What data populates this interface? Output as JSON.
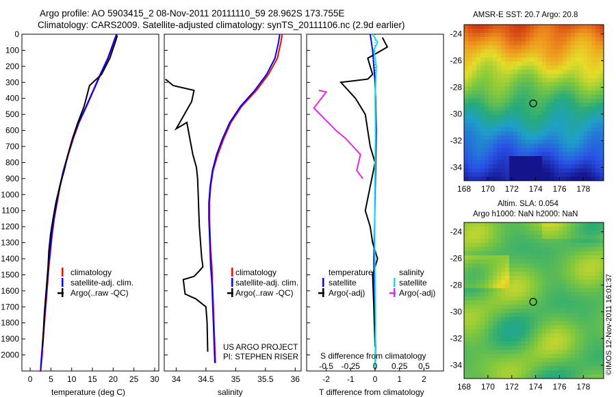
{
  "header": {
    "line1": "Argo profile: AO 5903415_2 08-Nov-2011 20111110_59 28.962S 173.755E",
    "line2": "Climatology: CARS2009. Satellite-adjusted climatology: synTS_20111106.nc (2.9d earlier)"
  },
  "colors": {
    "climatology": "#ff0000",
    "satellite": "#0000ff",
    "argo": "#000000",
    "salinity_satellite": "#00e5ee",
    "salinity_argo": "#ee22ee"
  },
  "panels": {
    "temperature": {
      "xlabel": "temperature (deg C)",
      "legend": [
        "climatology",
        "satellite-adj. clim.",
        "Argo(..raw -QC)"
      ]
    },
    "salinity": {
      "xlabel": "salinity",
      "legend": [
        "climatology",
        "satellite-adj. clim.",
        "Argo(..raw -QC)"
      ],
      "project_line1": "US ARGO PROJECT",
      "project_line2": "PI: STEPHEN RISER"
    },
    "difference": {
      "xlabel": "T difference from climatology",
      "top_label": "S difference from climatology",
      "legend_temperature_title": "temperature",
      "legend_salinity_title": "salinity",
      "legend_sat": "satellite",
      "legend_argo": "Argo(-adj)"
    }
  },
  "maps": {
    "sst_title": "AMSR-E SST: 20.7 Argo: 20.8",
    "sla_title1": "Altim. SLA: 0.054",
    "sla_title2": "Argo h1000: NaN h2000: NaN",
    "credit": "©IMOS 12-Nov-2011 16:01:37",
    "lon_ticks": [
      "168",
      "170",
      "172",
      "174",
      "176",
      "178"
    ],
    "lat_ticks": [
      "-24",
      "-26",
      "-28",
      "-30",
      "-32",
      "-34"
    ],
    "float_position": {
      "lon": 173.755,
      "lat": -28.962
    }
  },
  "chart_data": [
    {
      "type": "line",
      "panel": "temperature",
      "xlabel": "temperature (deg C)",
      "ylabel": "",
      "xlim": [
        -2,
        31
      ],
      "ylim": [
        2100,
        0
      ],
      "xticks": [
        0,
        5,
        10,
        15,
        20,
        25,
        30
      ],
      "yticks": [
        0,
        100,
        200,
        300,
        400,
        500,
        600,
        700,
        800,
        900,
        1000,
        1100,
        1200,
        1300,
        1400,
        1500,
        1600,
        1700,
        1800,
        1900,
        2000
      ],
      "series": [
        {
          "name": "climatology",
          "color": "#ff0000",
          "x": [
            21,
            20.2,
            18.8,
            17,
            15.3,
            13.6,
            11.8,
            10.4,
            9.2,
            8.1,
            7.2,
            6.5,
            5.8,
            5.3,
            4.9,
            4.5,
            4.2,
            3.9,
            3.6,
            3.3,
            3.0,
            2.9,
            2.7,
            2.6,
            2.5,
            2.4,
            2.3
          ],
          "y": [
            0,
            50,
            150,
            250,
            350,
            450,
            550,
            650,
            750,
            850,
            950,
            1050,
            1150,
            1250,
            1350,
            1450,
            1550,
            1650,
            1750,
            1850,
            1950,
            2000,
            2050,
            2075,
            2100,
            2100,
            2100
          ]
        },
        {
          "name": "satellite-adj. clim.",
          "color": "#0000ff",
          "x": [
            20.8,
            20.1,
            18.7,
            16.9,
            15.2,
            13.5,
            11.7,
            10.3,
            9.1,
            8.0,
            7.1,
            6.4,
            5.7,
            5.2,
            4.8,
            4.4,
            4.1,
            3.8,
            3.5,
            3.2,
            2.9,
            2.6,
            2.5
          ],
          "y": [
            0,
            50,
            150,
            250,
            350,
            450,
            550,
            650,
            750,
            850,
            950,
            1050,
            1150,
            1250,
            1350,
            1450,
            1550,
            1650,
            1750,
            1850,
            1950,
            2050,
            2100
          ]
        },
        {
          "name": "Argo(..raw -QC)",
          "color": "#000000",
          "x": [
            21,
            20.5,
            19.2,
            17.2,
            14.3,
            13.0,
            11.5,
            10.2,
            9.1,
            8.2,
            7.1,
            6.2,
            5.5,
            4.9,
            4.5,
            4.3,
            4.0,
            3.7,
            3.4,
            3.2,
            3.0
          ],
          "y": [
            10,
            50,
            150,
            250,
            320,
            450,
            550,
            650,
            750,
            850,
            950,
            1050,
            1150,
            1250,
            1350,
            1450,
            1550,
            1650,
            1750,
            1850,
            1950
          ]
        }
      ]
    },
    {
      "type": "line",
      "panel": "salinity",
      "xlabel": "salinity",
      "ylabel": "",
      "xlim": [
        33.8,
        36.1
      ],
      "ylim": [
        2100,
        0
      ],
      "xticks": [
        34,
        34.5,
        35,
        35.5,
        36
      ],
      "series": [
        {
          "name": "climatology",
          "color": "#ff0000",
          "x": [
            35.78,
            35.76,
            35.7,
            35.55,
            35.35,
            35.1,
            34.92,
            34.8,
            34.7,
            34.62,
            34.58,
            34.56,
            34.56,
            34.57,
            34.58,
            34.6,
            34.61,
            34.62,
            34.63,
            34.64,
            34.65,
            34.66
          ],
          "y": [
            0,
            50,
            150,
            250,
            350,
            450,
            550,
            650,
            750,
            850,
            950,
            1050,
            1150,
            1250,
            1350,
            1450,
            1550,
            1650,
            1750,
            1850,
            1950,
            2050
          ]
        },
        {
          "name": "satellite-adj. clim.",
          "color": "#0000ff",
          "x": [
            35.74,
            35.72,
            35.66,
            35.52,
            35.32,
            35.08,
            34.9,
            34.78,
            34.68,
            34.61,
            34.57,
            34.55,
            34.55,
            34.56,
            34.57,
            34.58,
            34.6,
            34.61,
            34.62,
            34.63,
            34.64,
            34.65
          ],
          "y": [
            0,
            50,
            150,
            250,
            350,
            450,
            550,
            650,
            750,
            850,
            950,
            1050,
            1150,
            1250,
            1350,
            1450,
            1550,
            1650,
            1750,
            1850,
            1950,
            2050
          ]
        },
        {
          "name": "Argo(..raw -QC)",
          "color": "#000000",
          "x": [
            33.82,
            33.95,
            34.3,
            34.26,
            34.0,
            34.18,
            34.28,
            34.34,
            34.36,
            34.37,
            34.38,
            34.39,
            34.41,
            34.43,
            34.45,
            34.38,
            34.3,
            34.12,
            34.15,
            34.33,
            34.5,
            34.52,
            34.53
          ],
          "y": [
            280,
            320,
            350,
            420,
            590,
            550,
            750,
            830,
            900,
            1000,
            1100,
            1200,
            1300,
            1400,
            1450,
            1480,
            1510,
            1530,
            1620,
            1650,
            1700,
            1800,
            1980
          ]
        }
      ]
    },
    {
      "type": "line",
      "panel": "difference",
      "xlabel": "T difference from climatology",
      "ylabel": "",
      "xlim": [
        -2.8,
        2.8
      ],
      "ylim": [
        2100,
        0
      ],
      "xticks": [
        -2,
        -1,
        0,
        1,
        2
      ],
      "top_axis_label": "S difference from climatology",
      "top_xticks": [
        -0.5,
        -0.25,
        0,
        0.25,
        0.5
      ],
      "series": [
        {
          "name": "temperature satellite",
          "color": "#0000ff",
          "x": [
            -0.2,
            -0.1,
            -0.05,
            0,
            0.02,
            0.05,
            0.03,
            0,
            -0.02,
            -0.05,
            -0.03,
            0,
            0.02,
            0
          ],
          "y": [
            0,
            100,
            200,
            300,
            400,
            600,
            800,
            1000,
            1200,
            1400,
            1600,
            1800,
            1950,
            2100
          ]
        },
        {
          "name": "temperature Argo(-adj)",
          "color": "#000000",
          "x": [
            0.3,
            0.5,
            -0.3,
            -0.1,
            -0.3,
            -1.4,
            -0.8,
            -0.4,
            -0.3,
            -0.2,
            -0.1,
            0,
            -0.4,
            -0.2,
            -0.1,
            0.1,
            -0.1,
            -0.05,
            0
          ],
          "y": [
            20,
            80,
            150,
            250,
            280,
            300,
            400,
            500,
            600,
            700,
            750,
            800,
            1100,
            1200,
            1300,
            1400,
            1500,
            1700,
            1950
          ]
        },
        {
          "name": "salinity satellite",
          "color": "#00e5ee",
          "x": [
            -0.1,
            0.1,
            -0.05,
            0.05,
            0,
            0.02,
            0,
            -0.02,
            0,
            0.02,
            0
          ],
          "y": [
            0,
            50,
            100,
            200,
            400,
            600,
            800,
            1200,
            1600,
            1800,
            2100
          ]
        },
        {
          "name": "salinity Argo(-adj)",
          "color": "#ee22ee",
          "x": [
            -2.3,
            -2.0,
            -2.5,
            -1.6,
            -1.2,
            -0.6,
            -0.75,
            -0.5
          ],
          "y": [
            350,
            360,
            460,
            600,
            650,
            750,
            850,
            900
          ]
        }
      ]
    },
    {
      "type": "heatmap",
      "panel": "sst_map",
      "title": "AMSR-E SST: 20.7 Argo: 20.8",
      "xlim": [
        168,
        179.7
      ],
      "ylim": [
        -35,
        -23.3
      ],
      "xticks": [
        168,
        170,
        172,
        174,
        176,
        178
      ],
      "yticks": [
        -34,
        -32,
        -30,
        -28,
        -26,
        -24
      ]
    },
    {
      "type": "heatmap",
      "panel": "sla_map",
      "title": "Altim. SLA: 0.054",
      "xlim": [
        168,
        179.7
      ],
      "ylim": [
        -35,
        -23.3
      ],
      "xticks": [
        168,
        170,
        172,
        174,
        176,
        178
      ],
      "yticks": [
        -34,
        -32,
        -30,
        -28,
        -26,
        -24
      ]
    }
  ]
}
